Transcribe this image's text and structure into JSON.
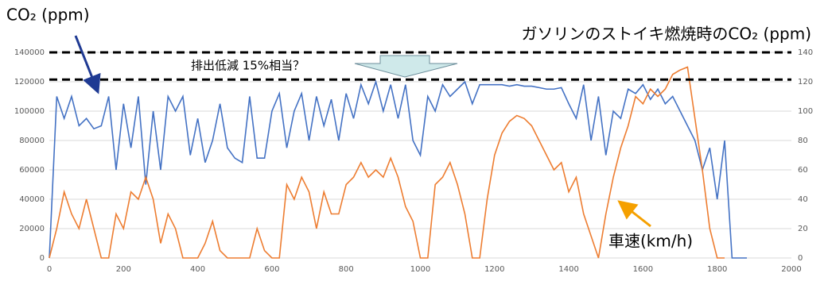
{
  "chart_data": {
    "type": "line",
    "x": [
      0,
      20,
      40,
      60,
      80,
      100,
      120,
      140,
      160,
      180,
      200,
      220,
      240,
      260,
      280,
      300,
      320,
      340,
      360,
      380,
      400,
      420,
      440,
      460,
      480,
      500,
      520,
      540,
      560,
      580,
      600,
      620,
      640,
      660,
      680,
      700,
      720,
      740,
      760,
      780,
      800,
      820,
      840,
      860,
      880,
      900,
      920,
      940,
      960,
      980,
      1000,
      1020,
      1040,
      1060,
      1080,
      1100,
      1120,
      1140,
      1160,
      1180,
      1200,
      1220,
      1240,
      1260,
      1280,
      1300,
      1320,
      1340,
      1360,
      1380,
      1400,
      1420,
      1440,
      1460,
      1480,
      1500,
      1520,
      1540,
      1560,
      1580,
      1600,
      1620,
      1640,
      1660,
      1680,
      1700,
      1720,
      1740,
      1760,
      1780,
      1800,
      1820,
      1840,
      1860,
      1880
    ],
    "series": [
      {
        "name": "CO₂ (ppm)",
        "color": "#4472c4",
        "values": [
          0,
          110000,
          95000,
          110000,
          90000,
          95000,
          88000,
          90000,
          110000,
          60000,
          105000,
          75000,
          110000,
          50000,
          100000,
          60000,
          110000,
          100000,
          110000,
          70000,
          95000,
          65000,
          80000,
          105000,
          75000,
          68000,
          65000,
          110000,
          68000,
          68000,
          100000,
          112000,
          75000,
          100000,
          112000,
          80000,
          110000,
          90000,
          108000,
          80000,
          112000,
          95000,
          118000,
          105000,
          120000,
          100000,
          118000,
          95000,
          118000,
          80000,
          70000,
          110000,
          100000,
          118000,
          110000,
          115000,
          120000,
          105000,
          118000,
          118000,
          118000,
          118000,
          117000,
          118000,
          117000,
          117000,
          116000,
          115000,
          115000,
          116000,
          105000,
          95000,
          118000,
          80000,
          110000,
          70000,
          100000,
          95000,
          115000,
          112000,
          118000,
          108000,
          115000,
          105000,
          110000,
          100000,
          90000,
          80000,
          60000,
          75000,
          40000,
          80000,
          0,
          0,
          0
        ]
      },
      {
        "name": "車速(km/h)",
        "color": "#ed7d31",
        "axis": "y2",
        "values": [
          0,
          20,
          45,
          30,
          20,
          40,
          20,
          0,
          0,
          30,
          20,
          45,
          40,
          55,
          40,
          10,
          30,
          20,
          0,
          0,
          0,
          10,
          25,
          5,
          0,
          0,
          0,
          0,
          20,
          5,
          0,
          0,
          50,
          40,
          55,
          45,
          20,
          45,
          30,
          30,
          50,
          55,
          65,
          55,
          60,
          55,
          68,
          55,
          35,
          25,
          0,
          0,
          50,
          55,
          65,
          50,
          30,
          0,
          0,
          40,
          70,
          85,
          93,
          97,
          95,
          90,
          80,
          70,
          60,
          65,
          45,
          55,
          30,
          15,
          0,
          30,
          55,
          75,
          90,
          110,
          105,
          115,
          110,
          115,
          125,
          128,
          130,
          95,
          60,
          20,
          0,
          0,
          null,
          null,
          null
        ]
      }
    ],
    "xlim": [
      0,
      2000
    ],
    "xticks": [
      0,
      200,
      400,
      600,
      800,
      1000,
      1200,
      1400,
      1600,
      1800,
      2000
    ],
    "ylim": [
      0,
      140000
    ],
    "yticks": [
      0,
      20000,
      40000,
      60000,
      80000,
      100000,
      120000,
      140000
    ],
    "y2lim": [
      0,
      140
    ],
    "y2ticks": [
      0,
      20,
      40,
      60,
      80,
      100,
      120,
      140
    ],
    "grid": true,
    "hlines": [
      140000,
      121500
    ],
    "hline_label": "ガソリンのストイキ燃焼時のCO₂ (ppm)",
    "annotation": "排出低減 15%相当？"
  }
}
